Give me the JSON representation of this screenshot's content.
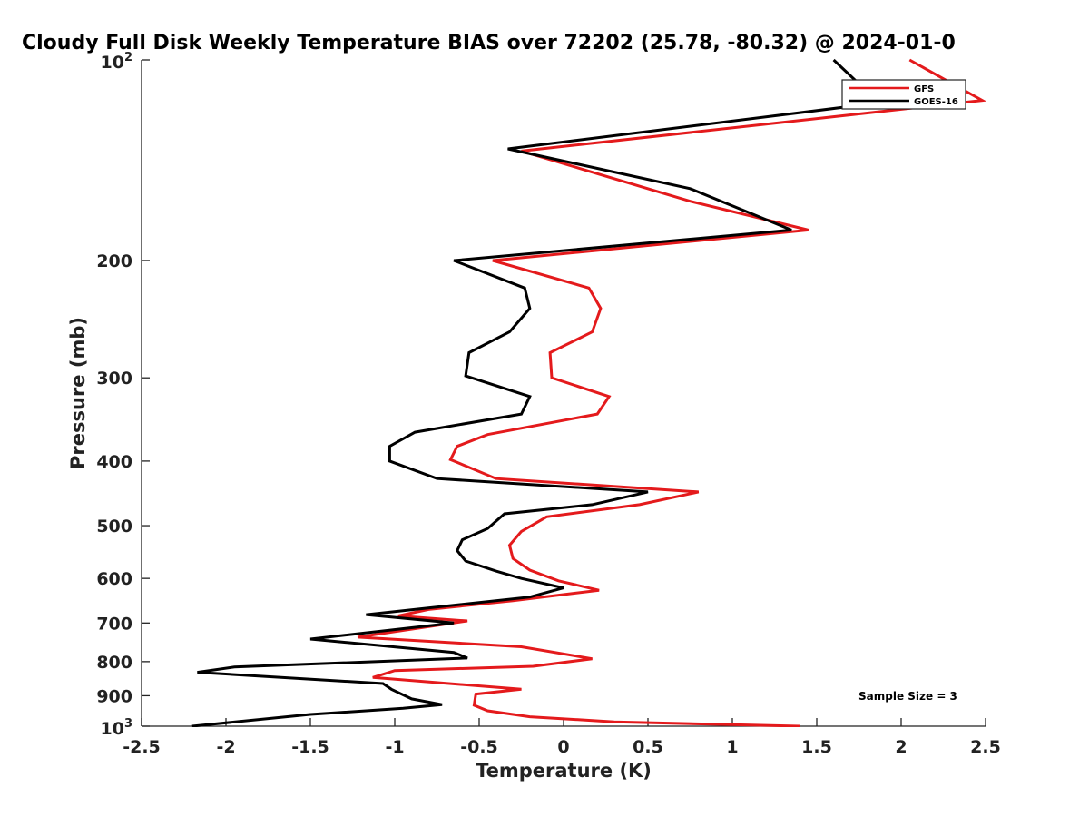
{
  "chart_data": {
    "type": "line",
    "title": "Cloudy Full Disk Weekly Temperature BIAS over 72202 (25.78, -80.32) @ 2024-01-0",
    "xlabel": "Temperature (K)",
    "ylabel": "Pressure (mb)",
    "xlim": [
      -2.5,
      2.5
    ],
    "ylim": [
      100,
      1000
    ],
    "y_scale": "log",
    "y_reversed": true,
    "x_ticks": [
      "-2.5",
      "-2",
      "-1.5",
      "-1",
      "-0.5",
      "0",
      "0.5",
      "1",
      "1.5",
      "2",
      "2.5"
    ],
    "y_ticks": [
      {
        "label": "200",
        "value": 200
      },
      {
        "label": "300",
        "value": 300
      },
      {
        "label": "400",
        "value": 400
      },
      {
        "label": "500",
        "value": 500
      },
      {
        "label": "600",
        "value": 600
      },
      {
        "label": "700",
        "value": 700
      },
      {
        "label": "800",
        "value": 800
      },
      {
        "label": "900",
        "value": 900
      }
    ],
    "y_power_ticks": [
      {
        "base": "10",
        "exp": "2",
        "value": 100
      },
      {
        "base": "10",
        "exp": "3",
        "value": 1000
      }
    ],
    "grid": false,
    "legend_position": "top-right",
    "annotation": "Sample Size = 3",
    "series": [
      {
        "name": "GFS",
        "color": "#e41a1c",
        "points": [
          [
            2.05,
            100
          ],
          [
            2.48,
            115
          ],
          [
            -0.25,
            137
          ],
          [
            0.75,
            163
          ],
          [
            1.45,
            180
          ],
          [
            -0.42,
            200
          ],
          [
            0.15,
            220
          ],
          [
            0.22,
            236
          ],
          [
            0.17,
            256
          ],
          [
            -0.08,
            275
          ],
          [
            -0.07,
            300
          ],
          [
            0.27,
            320
          ],
          [
            0.2,
            340
          ],
          [
            -0.45,
            365
          ],
          [
            -0.63,
            380
          ],
          [
            -0.67,
            398
          ],
          [
            -0.4,
            425
          ],
          [
            0.8,
            445
          ],
          [
            0.45,
            465
          ],
          [
            -0.1,
            485
          ],
          [
            -0.25,
            510
          ],
          [
            -0.32,
            535
          ],
          [
            -0.3,
            560
          ],
          [
            -0.2,
            583
          ],
          [
            -0.03,
            605
          ],
          [
            0.21,
            625
          ],
          [
            -0.3,
            648
          ],
          [
            -0.8,
            668
          ],
          [
            -0.98,
            683
          ],
          [
            -0.57,
            695
          ],
          [
            -1.22,
            735
          ],
          [
            -0.25,
            760
          ],
          [
            0.17,
            792
          ],
          [
            -0.18,
            813
          ],
          [
            -1.0,
            825
          ],
          [
            -1.13,
            845
          ],
          [
            -0.25,
            880
          ],
          [
            -0.52,
            895
          ],
          [
            -0.53,
            930
          ],
          [
            -0.45,
            948
          ],
          [
            -0.2,
            968
          ],
          [
            0.3,
            985
          ],
          [
            1.4,
            1000
          ]
        ]
      },
      {
        "name": "GOES-16",
        "color": "#000000",
        "points": [
          [
            1.6,
            100
          ],
          [
            1.87,
            116
          ],
          [
            -0.33,
            136
          ],
          [
            0.75,
            156
          ],
          [
            1.35,
            180
          ],
          [
            -0.65,
            200
          ],
          [
            -0.23,
            220
          ],
          [
            -0.2,
            236
          ],
          [
            -0.32,
            256
          ],
          [
            -0.56,
            275
          ],
          [
            -0.58,
            298
          ],
          [
            -0.2,
            320
          ],
          [
            -0.25,
            340
          ],
          [
            -0.88,
            362
          ],
          [
            -1.03,
            380
          ],
          [
            -1.03,
            400
          ],
          [
            -0.75,
            425
          ],
          [
            0.5,
            445
          ],
          [
            0.17,
            465
          ],
          [
            -0.35,
            480
          ],
          [
            -0.45,
            505
          ],
          [
            -0.6,
            525
          ],
          [
            -0.63,
            545
          ],
          [
            -0.58,
            565
          ],
          [
            -0.4,
            585
          ],
          [
            -0.25,
            600
          ],
          [
            0.0,
            620
          ],
          [
            -0.2,
            640
          ],
          [
            -1.17,
            680
          ],
          [
            -0.65,
            700
          ],
          [
            -1.5,
            740
          ],
          [
            -0.65,
            775
          ],
          [
            -0.57,
            790
          ],
          [
            -1.95,
            815
          ],
          [
            -2.17,
            830
          ],
          [
            -1.07,
            863
          ],
          [
            -1.02,
            880
          ],
          [
            -0.9,
            910
          ],
          [
            -0.72,
            928
          ],
          [
            -0.95,
            940
          ],
          [
            -1.5,
            960
          ],
          [
            -2.2,
            1000
          ]
        ]
      }
    ]
  }
}
